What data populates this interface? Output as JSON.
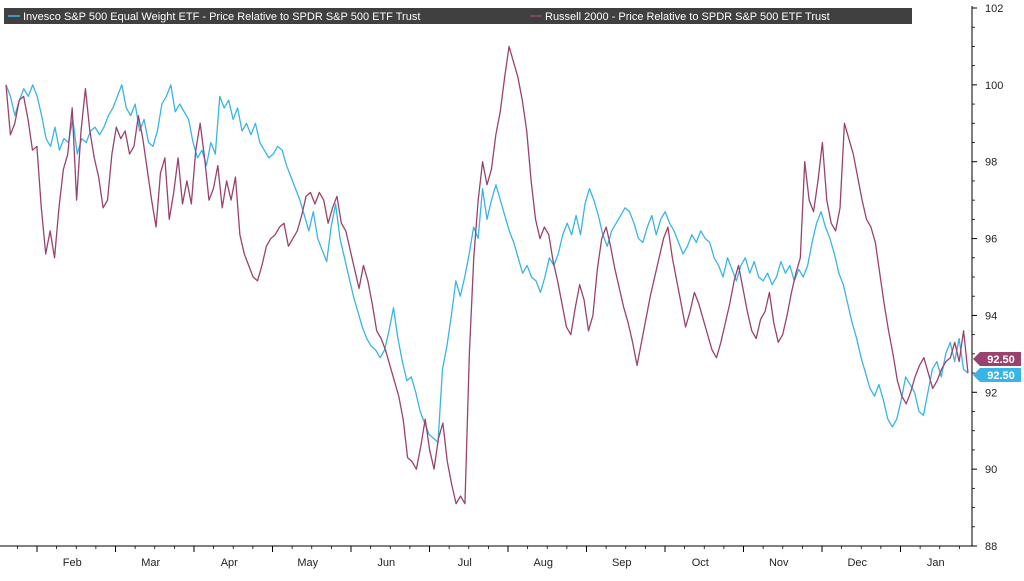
{
  "chart_data": {
    "type": "line",
    "title": "",
    "xlabel": "",
    "ylabel": "",
    "ylim": [
      88,
      102
    ],
    "y_ticks": [
      88,
      90,
      92,
      94,
      96,
      98,
      100,
      102
    ],
    "y_axis_position": "right",
    "grid": false,
    "legend_placement": "top-left",
    "x_tick_labels": [
      "Feb",
      "Mar",
      "Apr",
      "May",
      "Jun",
      "Jul",
      "Aug",
      "Sep",
      "Oct",
      "Nov",
      "Dec",
      "Jan"
    ],
    "colors": {
      "legend_background": "#404040",
      "axis": "#000000",
      "background": "#ffffff"
    },
    "series": [
      {
        "name": "Invesco S&P 500 Equal Weight ETF - Price Relative to SPDR S&P 500 ETF Trust",
        "color": "#3ab4e6",
        "last_value_label": "92.50",
        "values": [
          100,
          99.7,
          99.2,
          99.6,
          99.9,
          99.7,
          100,
          99.7,
          99.2,
          98.6,
          98.4,
          98.9,
          98.3,
          98.6,
          98.5,
          99.1,
          98.2,
          98.6,
          98.5,
          98.8,
          98.9,
          98.7,
          98.9,
          99.2,
          99.4,
          99.7,
          100,
          99.4,
          99.2,
          99.5,
          98.8,
          99.1,
          98.5,
          98.4,
          98.8,
          99.5,
          99.7,
          100,
          99.3,
          99.5,
          99.3,
          99.1,
          98.5,
          98.1,
          98.3,
          97.9,
          98.5,
          98.2,
          99.7,
          99.4,
          99.6,
          99.1,
          99.4,
          98.8,
          99.0,
          98.7,
          99.0,
          98.5,
          98.3,
          98.1,
          98.2,
          98.4,
          98.3,
          97.9,
          97.6,
          97.3,
          97.0,
          96.6,
          96.2,
          96.7,
          96.0,
          95.7,
          95.4,
          96.3,
          96.9,
          96.0,
          95.5,
          95.0,
          94.5,
          94.1,
          93.7,
          93.4,
          93.2,
          93.1,
          92.9,
          93.1,
          93.6,
          94.2,
          93.4,
          92.8,
          92.3,
          92.4,
          92.0,
          91.5,
          91.2,
          90.9,
          90.8,
          90.7,
          92.6,
          93.2,
          94.0,
          94.9,
          94.5,
          95.0,
          95.6,
          96.3,
          96.0,
          97.3,
          96.5,
          97.0,
          97.4,
          97.0,
          96.6,
          96.2,
          95.9,
          95.5,
          95.1,
          95.3,
          95.0,
          94.9,
          94.6,
          95.0,
          95.5,
          95.3,
          95.6,
          96.1,
          96.4,
          96.1,
          96.6,
          96.1,
          96.9,
          97.3,
          97.0,
          96.6,
          96.1,
          95.8,
          96.2,
          96.4,
          96.6,
          96.8,
          96.7,
          96.4,
          96.0,
          95.9,
          96.3,
          96.6,
          96.1,
          96.5,
          96.7,
          96.4,
          96.2,
          95.9,
          95.6,
          95.8,
          96.1,
          95.9,
          96.2,
          96.0,
          95.9,
          95.5,
          95.3,
          95.0,
          95.5,
          95.2,
          94.9,
          95.3,
          95.5,
          95.1,
          95.4,
          95.0,
          94.9,
          95.1,
          94.8,
          95.0,
          95.4,
          95.1,
          95.3,
          94.9,
          95.2,
          95.0,
          95.3,
          95.9,
          96.4,
          96.7,
          96.3,
          96.0,
          95.6,
          95.1,
          94.8,
          94.3,
          93.8,
          93.4,
          92.9,
          92.5,
          92.1,
          91.9,
          92.2,
          91.8,
          91.3,
          91.1,
          91.3,
          91.8,
          92.4,
          92.2,
          92.0,
          91.5,
          91.4,
          92.0,
          92.6,
          92.8,
          92.4,
          93.0,
          93.3,
          92.8,
          93.4,
          92.6,
          92.5
        ]
      },
      {
        "name": "Russell 2000 - Price Relative to SPDR S&P 500 ETF Trust",
        "color": "#99426e",
        "last_value_label": "92.50",
        "values": [
          100,
          98.7,
          99.0,
          99.6,
          99.7,
          99.1,
          98.3,
          98.4,
          96.8,
          95.6,
          96.2,
          95.5,
          96.8,
          97.8,
          98.2,
          99.4,
          97.0,
          98.8,
          99.9,
          98.8,
          98.1,
          97.6,
          96.8,
          97.0,
          98.2,
          98.9,
          98.6,
          98.8,
          98.2,
          98.4,
          99.2,
          98.6,
          97.8,
          97.0,
          96.3,
          97.7,
          98.1,
          96.5,
          97.2,
          98.1,
          96.9,
          97.5,
          96.9,
          98.3,
          99.0,
          98.1,
          97.0,
          97.3,
          97.9,
          96.8,
          97.5,
          97.0,
          97.6,
          96.1,
          95.6,
          95.3,
          95.0,
          94.9,
          95.3,
          95.8,
          96.0,
          96.1,
          96.3,
          96.4,
          95.8,
          96.0,
          96.2,
          96.6,
          97.1,
          97.2,
          96.9,
          97.2,
          97.0,
          96.4,
          96.8,
          97.1,
          96.4,
          96.2,
          95.7,
          95.2,
          94.7,
          95.3,
          94.9,
          94.3,
          93.6,
          93.4,
          93.1,
          92.7,
          92.3,
          91.9,
          91.3,
          90.3,
          90.2,
          90.0,
          90.6,
          91.3,
          90.5,
          90.0,
          90.8,
          91.2,
          90.2,
          89.6,
          89.1,
          89.3,
          89.1,
          93.0,
          95.5,
          97.0,
          98.0,
          97.4,
          97.8,
          98.7,
          99.3,
          100.2,
          101.0,
          100.6,
          100.2,
          99.6,
          98.8,
          97.5,
          96.5,
          96.0,
          96.3,
          96.1,
          95.4,
          94.9,
          94.3,
          93.7,
          93.5,
          94.2,
          94.8,
          94.4,
          93.6,
          94.0,
          95.2,
          96.0,
          96.3,
          95.8,
          95.2,
          94.7,
          94.2,
          93.8,
          93.3,
          92.7,
          93.3,
          93.9,
          94.5,
          95.0,
          95.5,
          96.0,
          96.3,
          95.5,
          94.9,
          94.3,
          93.7,
          94.1,
          94.6,
          94.3,
          93.9,
          93.5,
          93.1,
          92.9,
          93.3,
          93.8,
          94.3,
          94.9,
          95.3,
          94.7,
          94.1,
          93.6,
          93.4,
          93.9,
          94.1,
          94.6,
          93.8,
          93.3,
          93.5,
          94.0,
          94.6,
          95.1,
          95.5,
          98.0,
          97.0,
          96.7,
          97.5,
          98.5,
          97.0,
          96.4,
          96.2,
          96.8,
          99.0,
          98.6,
          98.2,
          97.6,
          97.0,
          96.5,
          96.3,
          95.9,
          95.1,
          94.3,
          93.6,
          93.0,
          92.3,
          91.9,
          91.7,
          92.0,
          92.4,
          92.7,
          92.9,
          92.5,
          92.1,
          92.3,
          92.6,
          92.8,
          92.9,
          93.3,
          92.8,
          93.6,
          92.5
        ]
      }
    ]
  }
}
